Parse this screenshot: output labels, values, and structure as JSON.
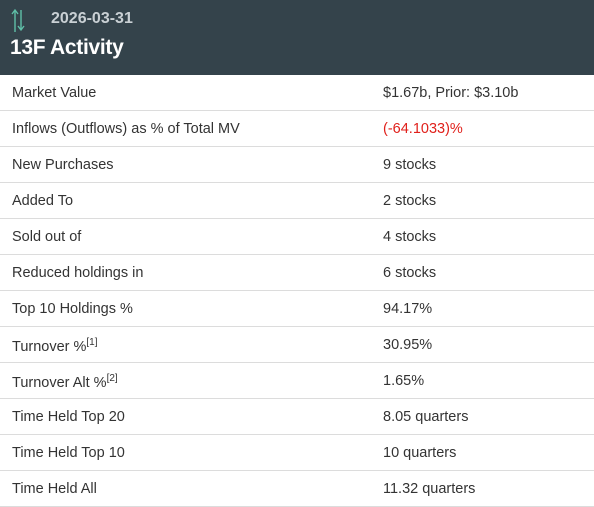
{
  "header": {
    "date": "2026-03-31",
    "title": "13F Activity"
  },
  "table": {
    "rows": [
      {
        "label": "Market Value",
        "value": "$1.67b, Prior: $3.10b"
      },
      {
        "label": "Inflows (Outflows) as % of Total MV",
        "value": "(-64.1033)%"
      },
      {
        "label": "New Purchases",
        "value": "9 stocks"
      },
      {
        "label": "Added To",
        "value": "2 stocks"
      },
      {
        "label": "Sold out of",
        "value": "4 stocks"
      },
      {
        "label": "Reduced holdings in",
        "value": "6 stocks"
      },
      {
        "label": "Top 10 Holdings %",
        "value": "94.17%"
      },
      {
        "label": "Turnover %",
        "note": "[1]",
        "value": "30.95%"
      },
      {
        "label": "Turnover Alt %",
        "note": "[2]",
        "value": "1.65%"
      },
      {
        "label": "Time Held Top 20",
        "value": "8.05 quarters"
      },
      {
        "label": "Time Held Top 10",
        "value": "10 quarters"
      },
      {
        "label": "Time Held All",
        "value": "11.32 quarters"
      }
    ]
  }
}
